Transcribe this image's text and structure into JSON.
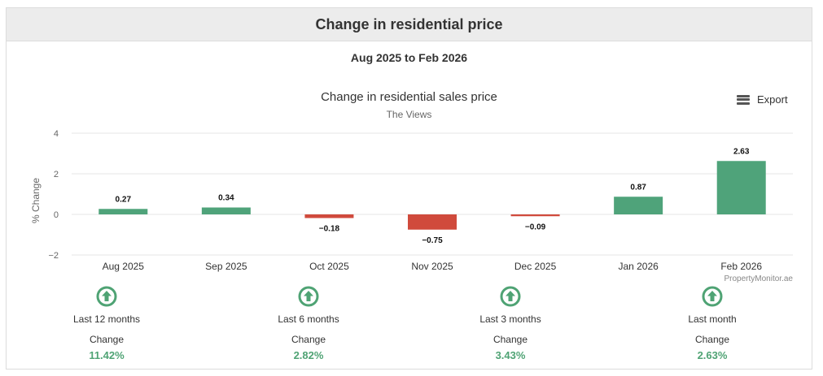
{
  "header": {
    "title": "Change in residential price"
  },
  "period": "Aug 2025 to Feb 2026",
  "export_label": "Export",
  "colors": {
    "positive": "#4fa37a",
    "negative": "#d04a3c",
    "stat_green": "#4fa374"
  },
  "chart_data": {
    "type": "bar",
    "title": "Change in residential sales price",
    "subtitle": "The Views",
    "xlabel": "",
    "ylabel": "% Change",
    "ylim": [
      -2,
      4
    ],
    "yticks": [
      4,
      2,
      0,
      -2
    ],
    "ytick_labels": [
      "4",
      "2",
      "0",
      "−2"
    ],
    "grid": true,
    "categories": [
      "Aug 2025",
      "Sep 2025",
      "Oct 2025",
      "Nov 2025",
      "Dec 2025",
      "Jan 2026",
      "Feb 2026"
    ],
    "values": [
      0.27,
      0.34,
      -0.18,
      -0.75,
      -0.09,
      0.87,
      2.63
    ],
    "data_labels": [
      "0.27",
      "0.34",
      "−0.18",
      "−0.75",
      "−0.09",
      "0.87",
      "2.63"
    ],
    "credit": "PropertyMonitor.ae"
  },
  "stats": [
    {
      "period": "Last 12 months",
      "label": "Change",
      "value": "11.42%"
    },
    {
      "period": "Last 6 months",
      "label": "Change",
      "value": "2.82%"
    },
    {
      "period": "Last 3 months",
      "label": "Change",
      "value": "3.43%"
    },
    {
      "period": "Last month",
      "label": "Change",
      "value": "2.63%"
    }
  ]
}
